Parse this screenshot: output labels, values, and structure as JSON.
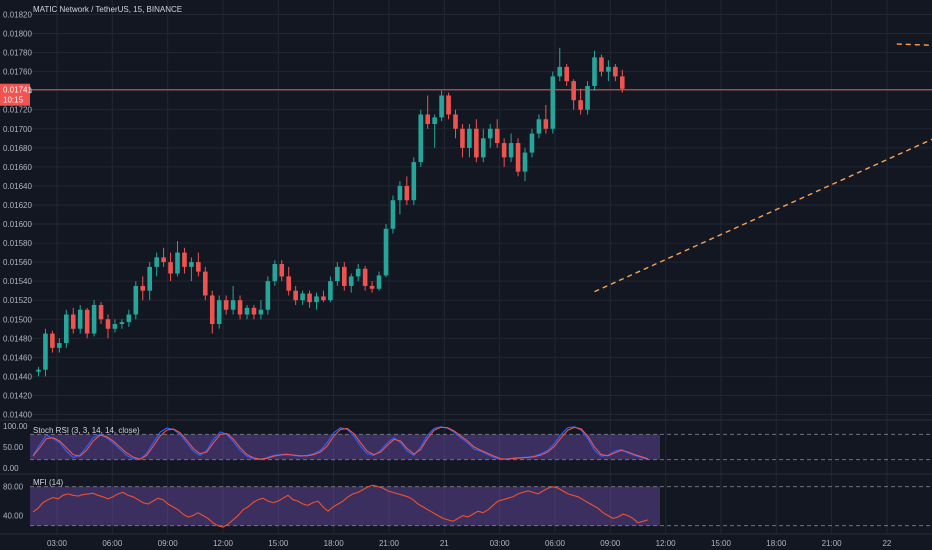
{
  "header": {
    "title": "MATIC Network / TetherUS, 15, BINANCE"
  },
  "price_tag": {
    "value": "0.01741",
    "countdown": "10:15",
    "color": "#f05350"
  },
  "colors": {
    "up": "#26a69a",
    "down": "#ef5350",
    "trend": "#f7a25a",
    "rsi_k": "#2962ff",
    "rsi_d": "#ef5350",
    "mfi": "#f0502f",
    "band": "#7e57c2",
    "grid": "#232732",
    "bg": "#131722"
  },
  "chart_data": [
    {
      "type": "candlestick",
      "title": "MATIC Network / TetherUS, 15, BINANCE",
      "ylim": [
        0.014,
        0.0182
      ],
      "y_ticks": [
        "0.01820",
        "0.01800",
        "0.01780",
        "0.01760",
        "0.01740",
        "0.01720",
        "0.01700",
        "0.01680",
        "0.01660",
        "0.01640",
        "0.01620",
        "0.01600",
        "0.01580",
        "0.01560",
        "0.01540",
        "0.01520",
        "0.01500",
        "0.01480",
        "0.01460",
        "0.01440",
        "0.01420",
        "0.01400"
      ],
      "x_labels": [
        "03:00",
        "06:00",
        "09:00",
        "12:00",
        "15:00",
        "18:00",
        "21:00",
        "21",
        "03:00",
        "06:00",
        "09:00",
        "12:00",
        "15:00",
        "18:00",
        "21:00",
        "22"
      ],
      "ohlc": [
        [
          0.01445,
          0.0145,
          0.0144,
          0.01447
        ],
        [
          0.01447,
          0.0149,
          0.0144,
          0.01485
        ],
        [
          0.01485,
          0.01488,
          0.01465,
          0.0147
        ],
        [
          0.0147,
          0.0148,
          0.01465,
          0.01475
        ],
        [
          0.01475,
          0.0151,
          0.0147,
          0.01505
        ],
        [
          0.01505,
          0.01512,
          0.01485,
          0.0149
        ],
        [
          0.0149,
          0.01515,
          0.01485,
          0.0151
        ],
        [
          0.0151,
          0.01512,
          0.0148,
          0.01485
        ],
        [
          0.01485,
          0.0152,
          0.01482,
          0.01515
        ],
        [
          0.01515,
          0.01518,
          0.01495,
          0.015
        ],
        [
          0.015,
          0.01505,
          0.0148,
          0.0149
        ],
        [
          0.0149,
          0.015,
          0.01486,
          0.01495
        ],
        [
          0.01495,
          0.015,
          0.0149,
          0.01497
        ],
        [
          0.01497,
          0.0151,
          0.01492,
          0.01505
        ],
        [
          0.01505,
          0.0154,
          0.015,
          0.01535
        ],
        [
          0.01535,
          0.01545,
          0.0152,
          0.0153
        ],
        [
          0.0153,
          0.0156,
          0.0152,
          0.01555
        ],
        [
          0.01555,
          0.0157,
          0.01545,
          0.01565
        ],
        [
          0.01565,
          0.01575,
          0.01555,
          0.0156
        ],
        [
          0.0156,
          0.0157,
          0.0154,
          0.01548
        ],
        [
          0.01548,
          0.01582,
          0.01545,
          0.0157
        ],
        [
          0.0157,
          0.01575,
          0.01548,
          0.01555
        ],
        [
          0.01555,
          0.01565,
          0.0154,
          0.0156
        ],
        [
          0.0156,
          0.0157,
          0.01545,
          0.0155
        ],
        [
          0.0155,
          0.01555,
          0.0152,
          0.01525
        ],
        [
          0.01525,
          0.0153,
          0.01485,
          0.01495
        ],
        [
          0.01495,
          0.01525,
          0.0149,
          0.0152
        ],
        [
          0.0152,
          0.01525,
          0.01505,
          0.0151
        ],
        [
          0.0151,
          0.01535,
          0.01505,
          0.0152
        ],
        [
          0.0152,
          0.01525,
          0.015,
          0.01505
        ],
        [
          0.01505,
          0.01515,
          0.015,
          0.01512
        ],
        [
          0.01512,
          0.01515,
          0.015,
          0.01505
        ],
        [
          0.01505,
          0.0152,
          0.015,
          0.0151
        ],
        [
          0.0151,
          0.01545,
          0.01505,
          0.0154
        ],
        [
          0.0154,
          0.01562,
          0.01535,
          0.01558
        ],
        [
          0.01558,
          0.01562,
          0.0154,
          0.01545
        ],
        [
          0.01545,
          0.01555,
          0.01525,
          0.0153
        ],
        [
          0.0153,
          0.01535,
          0.01515,
          0.0152
        ],
        [
          0.0152,
          0.0153,
          0.01515,
          0.01527
        ],
        [
          0.01527,
          0.0153,
          0.01512,
          0.01518
        ],
        [
          0.01518,
          0.01528,
          0.0151,
          0.01524
        ],
        [
          0.01524,
          0.0153,
          0.01518,
          0.0152
        ],
        [
          0.0152,
          0.01545,
          0.01518,
          0.0154
        ],
        [
          0.0154,
          0.0156,
          0.01535,
          0.01555
        ],
        [
          0.01555,
          0.0156,
          0.0153,
          0.01535
        ],
        [
          0.01535,
          0.01548,
          0.01528,
          0.01545
        ],
        [
          0.01545,
          0.01558,
          0.0154,
          0.01553
        ],
        [
          0.01553,
          0.01556,
          0.0153,
          0.01535
        ],
        [
          0.01535,
          0.0154,
          0.01528,
          0.01532
        ],
        [
          0.01532,
          0.0155,
          0.0153,
          0.01546
        ],
        [
          0.01546,
          0.016,
          0.01544,
          0.01595
        ],
        [
          0.01595,
          0.0163,
          0.0159,
          0.01625
        ],
        [
          0.01625,
          0.01645,
          0.0161,
          0.0164
        ],
        [
          0.0164,
          0.0165,
          0.0162,
          0.01625
        ],
        [
          0.01625,
          0.0167,
          0.0162,
          0.01665
        ],
        [
          0.01665,
          0.0172,
          0.0166,
          0.01715
        ],
        [
          0.01715,
          0.01735,
          0.017,
          0.01705
        ],
        [
          0.01705,
          0.01715,
          0.0168,
          0.01712
        ],
        [
          0.01712,
          0.0174,
          0.01708,
          0.01735
        ],
        [
          0.01735,
          0.01738,
          0.0171,
          0.01715
        ],
        [
          0.01715,
          0.0172,
          0.0169,
          0.017
        ],
        [
          0.017,
          0.01705,
          0.0167,
          0.0168
        ],
        [
          0.0168,
          0.01705,
          0.0167,
          0.017
        ],
        [
          0.017,
          0.0171,
          0.01665,
          0.0167
        ],
        [
          0.0167,
          0.017,
          0.01665,
          0.0169
        ],
        [
          0.0169,
          0.01705,
          0.0168,
          0.017
        ],
        [
          0.017,
          0.0171,
          0.0168,
          0.01685
        ],
        [
          0.01685,
          0.0169,
          0.0166,
          0.0167
        ],
        [
          0.0167,
          0.01695,
          0.01665,
          0.01685
        ],
        [
          0.01685,
          0.0169,
          0.0165,
          0.01655
        ],
        [
          0.01655,
          0.0168,
          0.01645,
          0.01675
        ],
        [
          0.01675,
          0.017,
          0.0167,
          0.01695
        ],
        [
          0.01695,
          0.01715,
          0.0169,
          0.0171
        ],
        [
          0.0171,
          0.01725,
          0.01695,
          0.017
        ],
        [
          0.017,
          0.0176,
          0.01695,
          0.01755
        ],
        [
          0.01755,
          0.01785,
          0.0175,
          0.01765
        ],
        [
          0.01765,
          0.01768,
          0.01745,
          0.0175
        ],
        [
          0.0175,
          0.01752,
          0.0172,
          0.0173
        ],
        [
          0.0173,
          0.01742,
          0.01715,
          0.0172
        ],
        [
          0.0172,
          0.0175,
          0.01715,
          0.01745
        ],
        [
          0.01745,
          0.01782,
          0.0174,
          0.01775
        ],
        [
          0.01775,
          0.01778,
          0.01755,
          0.0176
        ],
        [
          0.0176,
          0.01772,
          0.0175,
          0.01765
        ],
        [
          0.01765,
          0.01768,
          0.0175,
          0.01755
        ],
        [
          0.01755,
          0.01762,
          0.01738,
          0.01742
        ]
      ],
      "trendlines": [
        {
          "from": [
            80.0,
            0.01529
          ],
          "to": [
            172,
            0.01832
          ]
        },
        {
          "from": [
            123.5,
            0.01789
          ],
          "to": [
            213,
            0.01766
          ]
        }
      ],
      "last_price": 0.01741
    },
    {
      "type": "line",
      "title": "Stoch RSI (3, 3, 14, 14, close)",
      "ylim": [
        0,
        100
      ],
      "y_ticks": [
        "100.00",
        "50.00",
        "0.00"
      ],
      "band": [
        20,
        80
      ],
      "series": [
        {
          "values": [
            30,
            55,
            78,
            70,
            60,
            40,
            25,
            30,
            50,
            72,
            80,
            72,
            60,
            45,
            30,
            22,
            20,
            35,
            60,
            85,
            95,
            92,
            80,
            60,
            40,
            30,
            42,
            68,
            86,
            80,
            62,
            42,
            28,
            22,
            20,
            25,
            30,
            32,
            33,
            30,
            28,
            30,
            34,
            42,
            60,
            84,
            96,
            92,
            76,
            52,
            34,
            30,
            42,
            60,
            72,
            60,
            40,
            30,
            50,
            78,
            94,
            98,
            95,
            85,
            72,
            60,
            45,
            40,
            32,
            25,
            20,
            22,
            24,
            25,
            26,
            28,
            34,
            42,
            58,
            80,
            96,
            98,
            90,
            70,
            42,
            28,
            30,
            40,
            44,
            36,
            30,
            25,
            20
          ]
        },
        {
          "values": [
            28,
            48,
            70,
            72,
            64,
            48,
            32,
            28,
            42,
            64,
            78,
            75,
            64,
            50,
            36,
            26,
            21,
            30,
            52,
            76,
            90,
            93,
            84,
            66,
            46,
            34,
            38,
            60,
            80,
            82,
            68,
            48,
            32,
            24,
            21,
            23,
            28,
            31,
            32,
            31,
            29,
            29,
            32,
            38,
            52,
            76,
            92,
            94,
            82,
            60,
            40,
            32,
            38,
            54,
            68,
            64,
            46,
            33,
            44,
            70,
            90,
            97,
            96,
            88,
            76,
            64,
            50,
            42,
            35,
            28,
            22,
            21,
            23,
            24,
            25,
            27,
            31,
            38,
            52,
            72,
            90,
            97,
            93,
            76,
            50,
            32,
            29,
            36,
            42,
            38,
            32,
            27,
            22
          ]
        }
      ]
    },
    {
      "type": "line",
      "title": "MFI (14)",
      "ylim": [
        20,
        92
      ],
      "y_ticks": [
        "80.00",
        "40.00"
      ],
      "band": [
        26,
        80
      ],
      "series": [
        {
          "values": [
            45,
            50,
            58,
            62,
            65,
            63,
            68,
            70,
            68,
            67,
            69,
            70,
            71,
            68,
            66,
            63,
            66,
            70,
            72,
            68,
            66,
            62,
            58,
            56,
            60,
            64,
            62,
            56,
            52,
            48,
            42,
            38,
            40,
            44,
            40,
            36,
            30,
            26,
            24,
            28,
            34,
            40,
            48,
            52,
            58,
            62,
            64,
            60,
            58,
            60,
            64,
            68,
            62,
            60,
            56,
            54,
            58,
            60,
            52,
            46,
            52,
            56,
            60,
            66,
            70,
            72,
            76,
            80,
            82,
            80,
            78,
            74,
            72,
            70,
            68,
            66,
            62,
            56,
            52,
            48,
            44,
            40,
            36,
            34,
            32,
            36,
            40,
            38,
            42,
            46,
            44,
            48,
            54,
            60,
            62,
            64,
            66,
            70,
            72,
            74,
            72,
            70,
            74,
            78,
            80,
            78,
            74,
            70,
            68,
            66,
            62,
            58,
            54,
            50,
            44,
            40,
            36,
            38,
            42,
            40,
            36,
            30,
            32,
            34
          ]
        }
      ]
    }
  ]
}
